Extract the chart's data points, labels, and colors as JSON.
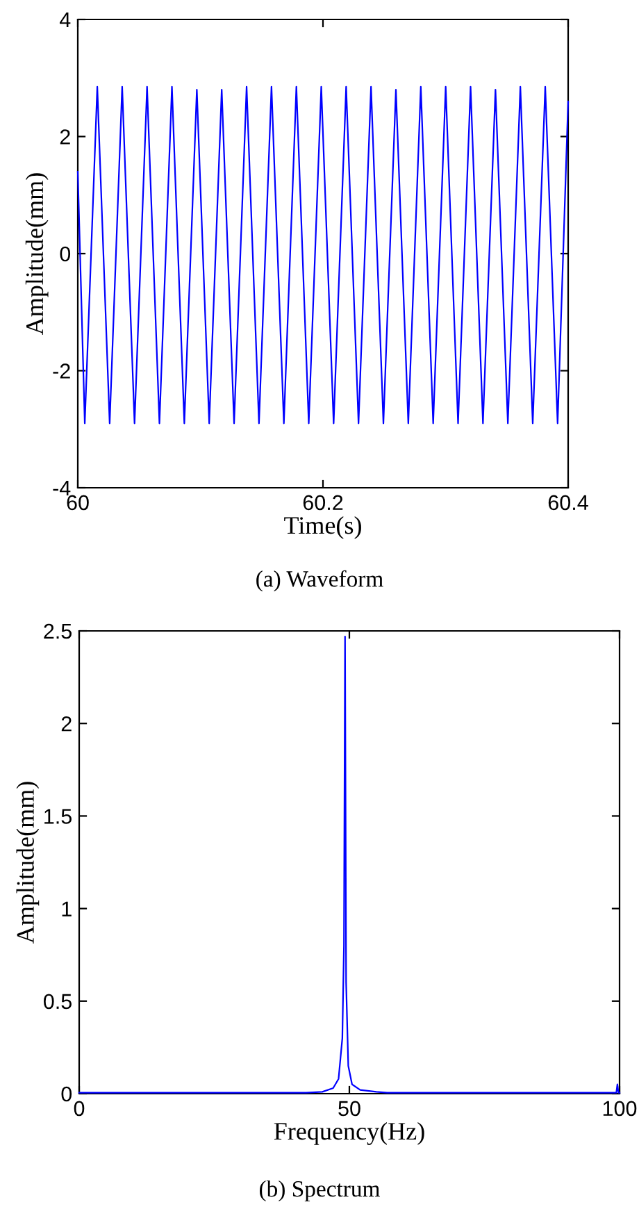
{
  "chart_data": [
    {
      "type": "line",
      "xlabel": "Time(s)",
      "ylabel": "Amplitude(mm)",
      "annotations": [
        "(a) Waveform"
      ],
      "x": [
        60.0,
        60.0057,
        60.0159,
        60.026,
        60.0362,
        60.0463,
        60.0565,
        60.0666,
        60.0768,
        60.0869,
        60.0971,
        60.1072,
        60.1174,
        60.1275,
        60.1377,
        60.1478,
        60.158,
        60.1681,
        60.1783,
        60.1884,
        60.1986,
        60.2087,
        60.2189,
        60.229,
        60.2392,
        60.2493,
        60.2595,
        60.2696,
        60.2798,
        60.2899,
        60.3001,
        60.3102,
        60.3204,
        60.3305,
        60.3407,
        60.3508,
        60.361,
        60.3711,
        60.3813,
        60.3914,
        60.4
      ],
      "series": [
        {
          "color": "#0000ff",
          "values": [
            1.4,
            -2.9,
            2.85,
            -2.9,
            2.85,
            -2.9,
            2.85,
            -2.9,
            2.85,
            -2.9,
            2.8,
            -2.9,
            2.8,
            -2.9,
            2.85,
            -2.9,
            2.85,
            -2.9,
            2.85,
            -2.9,
            2.85,
            -2.9,
            2.85,
            -2.9,
            2.85,
            -2.9,
            2.8,
            -2.9,
            2.85,
            -2.9,
            2.85,
            -2.9,
            2.85,
            -2.9,
            2.8,
            -2.9,
            2.85,
            -2.9,
            2.85,
            -2.9,
            2.6
          ]
        }
      ],
      "xlim": [
        60,
        60.4
      ],
      "xticks": [
        60,
        60.2,
        60.4
      ],
      "ylim": [
        -4,
        4
      ],
      "yticks": [
        -4,
        -2,
        0,
        2,
        4
      ],
      "grid": false,
      "legend": false
    },
    {
      "type": "line",
      "xlabel": "Frequency(Hz)",
      "ylabel": "Amplitude(mm)",
      "annotations": [
        "(b) Spectrum"
      ],
      "x": [
        0,
        42,
        45,
        47,
        48,
        48.7,
        49,
        49.2,
        49.4,
        49.8,
        50.5,
        52,
        55,
        57,
        99.4,
        99.6,
        99.8,
        100
      ],
      "series": [
        {
          "color": "#0000ff",
          "values": [
            0.005,
            0.005,
            0.01,
            0.03,
            0.08,
            0.3,
            0.8,
            2.47,
            0.6,
            0.15,
            0.05,
            0.02,
            0.01,
            0.005,
            0.005,
            0.05,
            0.005,
            0.005
          ]
        }
      ],
      "xlim": [
        0,
        100
      ],
      "xticks": [
        0,
        50,
        100
      ],
      "ylim": [
        0,
        2.5
      ],
      "yticks": [
        0,
        0.5,
        1,
        1.5,
        2,
        2.5
      ],
      "grid": false,
      "legend": false
    }
  ]
}
